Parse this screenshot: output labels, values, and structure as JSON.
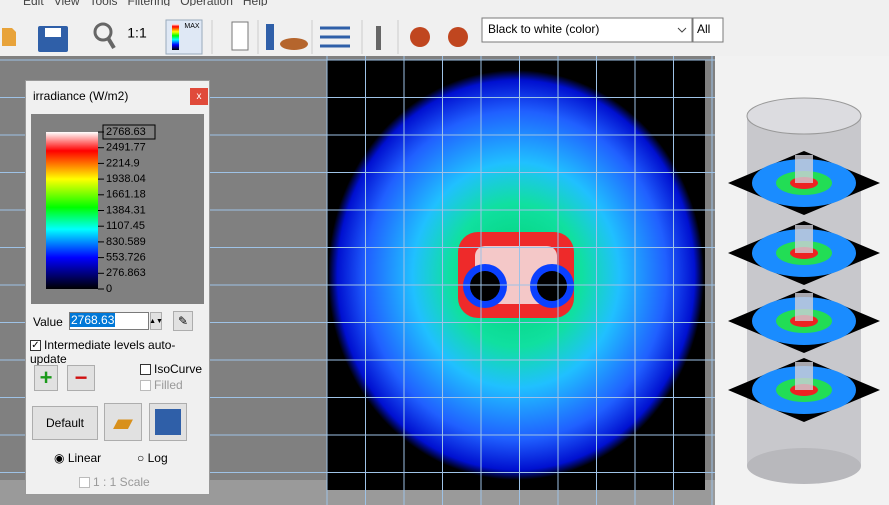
{
  "menu": [
    "Edit",
    "View",
    "Tools",
    "Filtering",
    "Operation",
    "Help"
  ],
  "toolbar": {
    "zoom_label": "1:1",
    "max_label": "MAX",
    "palette": "Black to white (color)",
    "layer": "All"
  },
  "panel": {
    "title": "irradiance (W/m2)",
    "close": "x",
    "levels": [
      "2768.63",
      "2491.77",
      "2214.9",
      "1938.04",
      "1661.18",
      "1384.31",
      "1107.45",
      "830.589",
      "553.726",
      "276.863",
      "0"
    ],
    "value_label": "Value",
    "value": "2768.63",
    "auto_update": "Intermediate levels auto-update",
    "isocurve": "IsoCurve",
    "filled": "Filled",
    "default": "Default",
    "linear": "Linear",
    "log": "Log",
    "scale": "1 : 1 Scale"
  }
}
